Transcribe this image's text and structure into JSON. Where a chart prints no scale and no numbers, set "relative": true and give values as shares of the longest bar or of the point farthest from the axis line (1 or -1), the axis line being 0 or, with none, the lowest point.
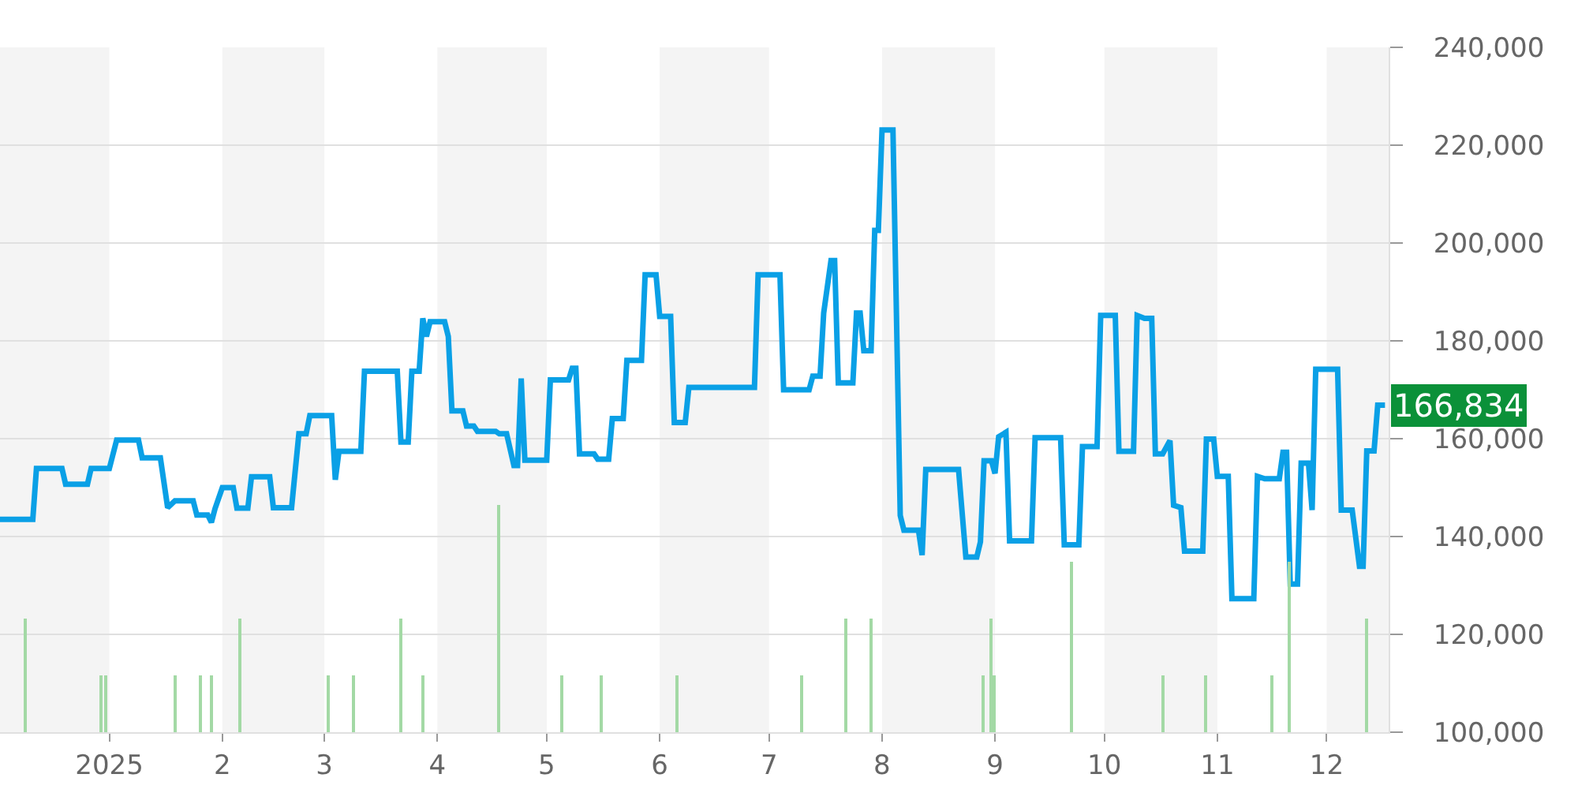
{
  "chart_data": [
    {
      "type": "line",
      "color": "#0aa0e6",
      "x": [
        "2024-12-02",
        "2024-12-11",
        "2024-12-12",
        "2024-12-19",
        "2024-12-20",
        "2024-12-26",
        "2024-12-27",
        "2025-01-01",
        "2025-01-03",
        "2025-01-09",
        "2025-01-10",
        "2025-01-15",
        "2025-01-17",
        "2025-01-19",
        "2025-01-24",
        "2025-01-25",
        "2025-01-28",
        "2025-01-29",
        "2025-01-30",
        "2025-02-01",
        "2025-02-04",
        "2025-02-05",
        "2025-02-08",
        "2025-02-09",
        "2025-02-14",
        "2025-02-15",
        "2025-02-20",
        "2025-02-22",
        "2025-02-24",
        "2025-02-25",
        "2025-03-03",
        "2025-03-04",
        "2025-03-05",
        "2025-03-11",
        "2025-03-12",
        "2025-03-21",
        "2025-03-22",
        "2025-03-24",
        "2025-03-25",
        "2025-03-27",
        "2025-03-28",
        "2025-03-29",
        "2025-03-30",
        "2025-04-03",
        "2025-04-04",
        "2025-04-05",
        "2025-04-08",
        "2025-04-09",
        "2025-04-11",
        "2025-04-12",
        "2025-04-17",
        "2025-04-18",
        "2025-04-20",
        "2025-04-22",
        "2025-04-23",
        "2025-04-24",
        "2025-04-25",
        "2025-05-01",
        "2025-05-02",
        "2025-05-07",
        "2025-05-08",
        "2025-05-09",
        "2025-05-10",
        "2025-05-14",
        "2025-05-15",
        "2025-05-18",
        "2025-05-19",
        "2025-05-22",
        "2025-05-23",
        "2025-05-27",
        "2025-05-28",
        "2025-05-31",
        "2025-06-01",
        "2025-06-04",
        "2025-06-05",
        "2025-06-08",
        "2025-06-09",
        "2025-06-27",
        "2025-06-28",
        "2025-07-04",
        "2025-07-05",
        "2025-07-12",
        "2025-07-13",
        "2025-07-15",
        "2025-07-16",
        "2025-07-18",
        "2025-07-19",
        "2025-07-20",
        "2025-07-24",
        "2025-07-25",
        "2025-07-26",
        "2025-07-27",
        "2025-07-29",
        "2025-07-30",
        "2025-07-31",
        "2025-08-01",
        "2025-08-04",
        "2025-08-06",
        "2025-08-07",
        "2025-08-11",
        "2025-08-12",
        "2025-08-13",
        "2025-08-22",
        "2025-08-24",
        "2025-08-27",
        "2025-08-28",
        "2025-08-29",
        "2025-08-31",
        "2025-09-01",
        "2025-09-02",
        "2025-09-04",
        "2025-09-05",
        "2025-09-11",
        "2025-09-12",
        "2025-09-19",
        "2025-09-20",
        "2025-09-24",
        "2025-09-25",
        "2025-09-29",
        "2025-09-30",
        "2025-10-04",
        "2025-10-05",
        "2025-10-09",
        "2025-10-10",
        "2025-10-12",
        "2025-10-14",
        "2025-10-15",
        "2025-10-17",
        "2025-10-19",
        "2025-10-20",
        "2025-10-22",
        "2025-10-23",
        "2025-10-28",
        "2025-10-29",
        "2025-10-31",
        "2025-11-01",
        "2025-11-04",
        "2025-11-05",
        "2025-11-11",
        "2025-11-12",
        "2025-11-14",
        "2025-11-18",
        "2025-11-19",
        "2025-11-20",
        "2025-11-21",
        "2025-11-23",
        "2025-11-24",
        "2025-11-26",
        "2025-11-27",
        "2025-11-28",
        "2025-12-04",
        "2025-12-05",
        "2025-12-08",
        "2025-12-10",
        "2025-12-11",
        "2025-12-12",
        "2025-12-14",
        "2025-12-15",
        "2025-12-17"
      ],
      "values": [
        143500,
        143500,
        153900,
        153900,
        150700,
        150700,
        153900,
        153900,
        159700,
        159700,
        156100,
        156100,
        145900,
        147300,
        147300,
        144400,
        144400,
        142900,
        145700,
        150000,
        150000,
        145800,
        145800,
        152200,
        152200,
        145900,
        145900,
        161000,
        161000,
        164700,
        164700,
        151600,
        157400,
        157400,
        173800,
        173800,
        159300,
        159300,
        173800,
        173800,
        184600,
        180900,
        183900,
        183900,
        180900,
        165700,
        165700,
        162600,
        162600,
        161500,
        161500,
        161000,
        161000,
        154500,
        154500,
        172300,
        155600,
        155600,
        172000,
        172000,
        174400,
        174400,
        156900,
        156900,
        155800,
        155800,
        164100,
        164100,
        176000,
        176000,
        193500,
        193500,
        185000,
        185000,
        163300,
        163300,
        170500,
        170500,
        193500,
        193500,
        170000,
        170000,
        172800,
        172800,
        185700,
        196400,
        196400,
        171400,
        171400,
        185700,
        185700,
        178000,
        178000,
        202600,
        202600,
        223100,
        223100,
        144300,
        141300,
        141300,
        136200,
        153700,
        153700,
        135800,
        135800,
        138900,
        155500,
        155500,
        152900,
        160400,
        161300,
        139100,
        139100,
        160200,
        160200,
        138300,
        138300,
        158400,
        158400,
        185200,
        185200,
        157400,
        157400,
        185200,
        184600,
        184600,
        156900,
        156900,
        159600,
        146400,
        145900,
        137000,
        137000,
        159900,
        159900,
        152300,
        152300,
        127300,
        127300,
        152300,
        151800,
        151800,
        157200,
        157200,
        130300,
        130300,
        155000,
        155000,
        145400,
        174200,
        174200,
        145400,
        145400,
        133900,
        133900,
        157500,
        157500,
        166834,
        166834
      ],
      "xlim": [
        "2024-12-02",
        "2025-12-18"
      ],
      "xticks": [
        {
          "value": "2025-01-01",
          "label": "2025"
        },
        {
          "value": "2025-02-01",
          "label": "2"
        },
        {
          "value": "2025-03-01",
          "label": "3"
        },
        {
          "value": "2025-04-01",
          "label": "4"
        },
        {
          "value": "2025-05-01",
          "label": "5"
        },
        {
          "value": "2025-06-01",
          "label": "6"
        },
        {
          "value": "2025-07-01",
          "label": "7"
        },
        {
          "value": "2025-08-01",
          "label": "8"
        },
        {
          "value": "2025-09-01",
          "label": "9"
        },
        {
          "value": "2025-10-01",
          "label": "10"
        },
        {
          "value": "2025-11-01",
          "label": "11"
        },
        {
          "value": "2025-12-01",
          "label": "12"
        }
      ],
      "ylim": [
        100000,
        240000
      ],
      "yticks": [
        {
          "value": 100000,
          "label": "100,000"
        },
        {
          "value": 120000,
          "label": "120,000"
        },
        {
          "value": 140000,
          "label": "140,000"
        },
        {
          "value": 160000,
          "label": "160,000"
        },
        {
          "value": 180000,
          "label": "180,000"
        },
        {
          "value": 200000,
          "label": "200,000"
        },
        {
          "value": 220000,
          "label": "220,000"
        },
        {
          "value": 240000,
          "label": "240,000"
        }
      ],
      "bands": [
        {
          "axis": "x",
          "from": "2024-12-02",
          "to": "2025-01-01",
          "color": "#f4f4f4"
        },
        {
          "axis": "x",
          "from": "2025-02-01",
          "to": "2025-03-01",
          "color": "#f4f4f4"
        },
        {
          "axis": "x",
          "from": "2025-04-01",
          "to": "2025-05-01",
          "color": "#f4f4f4"
        },
        {
          "axis": "x",
          "from": "2025-06-01",
          "to": "2025-07-01",
          "color": "#f4f4f4"
        },
        {
          "axis": "x",
          "from": "2025-08-01",
          "to": "2025-09-01",
          "color": "#f4f4f4"
        },
        {
          "axis": "x",
          "from": "2025-10-01",
          "to": "2025-11-01",
          "color": "#f4f4f4"
        },
        {
          "axis": "x",
          "from": "2025-12-01",
          "to": "2025-12-18",
          "color": "#f4f4f4"
        }
      ],
      "annotations": [
        {
          "text": "166,834",
          "x": "2025-12-17",
          "y": 166834
        }
      ],
      "grid": "y"
    },
    {
      "type": "bar",
      "relative": true,
      "color": "#a3d9a5",
      "tick_labels": false,
      "x": [
        "2024-12-09",
        "2024-12-30",
        "2024-12-31",
        "2025-01-19",
        "2025-01-26",
        "2025-01-29",
        "2025-02-06",
        "2025-03-02",
        "2025-03-09",
        "2025-03-22",
        "2025-03-28",
        "2025-04-18",
        "2025-05-05",
        "2025-05-16",
        "2025-06-06",
        "2025-07-10",
        "2025-07-22",
        "2025-07-29",
        "2025-08-29",
        "2025-08-31",
        "2025-09-01",
        "2025-09-22",
        "2025-10-17",
        "2025-10-29",
        "2025-11-16",
        "2025-11-21",
        "2025-12-12"
      ],
      "values": [
        0.5,
        0.25,
        0.25,
        0.25,
        0.25,
        0.25,
        0.5,
        0.25,
        0.25,
        0.5,
        0.25,
        1,
        0.25,
        0.25,
        0.25,
        0.25,
        0.5,
        0.5,
        0.25,
        0.5,
        0.25,
        0.75,
        0.25,
        0.25,
        0.25,
        0.75,
        0.5
      ],
      "xlim": [
        "2024-12-02",
        "2025-12-18"
      ]
    }
  ]
}
